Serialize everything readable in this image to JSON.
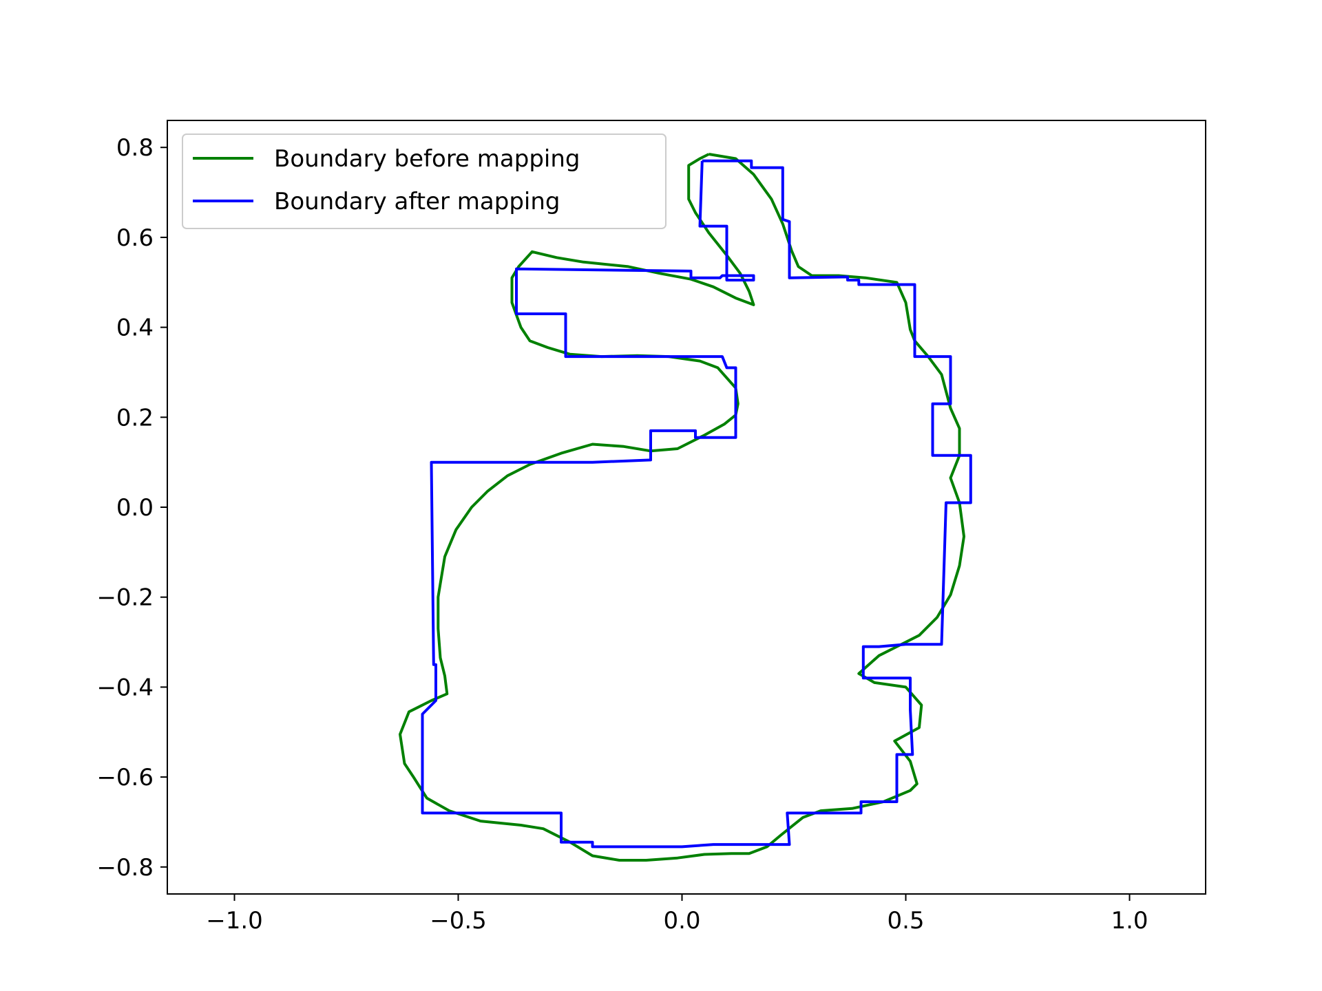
{
  "chart_data": {
    "type": "line",
    "title": "",
    "xlabel": "",
    "ylabel": "",
    "xlim": [
      -1.15,
      1.17
    ],
    "ylim": [
      -0.86,
      0.86
    ],
    "xticks": [
      -1.0,
      -0.5,
      0.0,
      0.5,
      1.0
    ],
    "xtick_labels": [
      "−1.0",
      "−0.5",
      "0.0",
      "0.5",
      "1.0"
    ],
    "yticks": [
      0.8,
      0.6,
      0.4,
      0.2,
      0.0,
      -0.2,
      -0.4,
      -0.6,
      -0.8
    ],
    "ytick_labels": [
      "0.8",
      "0.6",
      "0.4",
      "0.2",
      "0.0",
      "−0.2",
      "−0.4",
      "−0.6",
      "−0.8"
    ],
    "grid": false,
    "legend_position": "top-left",
    "series": [
      {
        "name": "Boundary before mapping",
        "color": "#008000",
        "points": [
          [
            0.06,
            0.785
          ],
          [
            0.12,
            0.775
          ],
          [
            0.16,
            0.74
          ],
          [
            0.2,
            0.685
          ],
          [
            0.225,
            0.63
          ],
          [
            0.245,
            0.57
          ],
          [
            0.26,
            0.535
          ],
          [
            0.29,
            0.515
          ],
          [
            0.35,
            0.515
          ],
          [
            0.41,
            0.51
          ],
          [
            0.48,
            0.5
          ],
          [
            0.5,
            0.455
          ],
          [
            0.51,
            0.395
          ],
          [
            0.52,
            0.37
          ],
          [
            0.55,
            0.335
          ],
          [
            0.58,
            0.295
          ],
          [
            0.6,
            0.22
          ],
          [
            0.62,
            0.175
          ],
          [
            0.62,
            0.115
          ],
          [
            0.6,
            0.065
          ],
          [
            0.62,
            0.01
          ],
          [
            0.63,
            -0.065
          ],
          [
            0.62,
            -0.13
          ],
          [
            0.6,
            -0.195
          ],
          [
            0.57,
            -0.245
          ],
          [
            0.53,
            -0.285
          ],
          [
            0.48,
            -0.31
          ],
          [
            0.44,
            -0.33
          ],
          [
            0.395,
            -0.37
          ],
          [
            0.43,
            -0.39
          ],
          [
            0.5,
            -0.4
          ],
          [
            0.535,
            -0.44
          ],
          [
            0.53,
            -0.49
          ],
          [
            0.475,
            -0.52
          ],
          [
            0.51,
            -0.565
          ],
          [
            0.525,
            -0.615
          ],
          [
            0.51,
            -0.63
          ],
          [
            0.45,
            -0.655
          ],
          [
            0.38,
            -0.67
          ],
          [
            0.31,
            -0.675
          ],
          [
            0.27,
            -0.69
          ],
          [
            0.22,
            -0.73
          ],
          [
            0.19,
            -0.755
          ],
          [
            0.15,
            -0.77
          ],
          [
            0.11,
            -0.77
          ],
          [
            0.05,
            -0.772
          ],
          [
            -0.01,
            -0.78
          ],
          [
            -0.08,
            -0.785
          ],
          [
            -0.14,
            -0.785
          ],
          [
            -0.2,
            -0.775
          ],
          [
            -0.25,
            -0.745
          ],
          [
            -0.31,
            -0.715
          ],
          [
            -0.36,
            -0.707
          ],
          [
            -0.45,
            -0.698
          ],
          [
            -0.52,
            -0.675
          ],
          [
            -0.57,
            -0.647
          ],
          [
            -0.6,
            -0.6
          ],
          [
            -0.62,
            -0.57
          ],
          [
            -0.63,
            -0.505
          ],
          [
            -0.61,
            -0.455
          ],
          [
            -0.59,
            -0.445
          ],
          [
            -0.56,
            -0.43
          ],
          [
            -0.525,
            -0.415
          ],
          [
            -0.53,
            -0.375
          ],
          [
            -0.54,
            -0.335
          ],
          [
            -0.545,
            -0.27
          ],
          [
            -0.545,
            -0.2
          ],
          [
            -0.54,
            -0.17
          ],
          [
            -0.53,
            -0.11
          ],
          [
            -0.505,
            -0.05
          ],
          [
            -0.47,
            0.0
          ],
          [
            -0.435,
            0.035
          ],
          [
            -0.39,
            0.07
          ],
          [
            -0.34,
            0.095
          ],
          [
            -0.27,
            0.12
          ],
          [
            -0.2,
            0.14
          ],
          [
            -0.13,
            0.135
          ],
          [
            -0.07,
            0.125
          ],
          [
            -0.01,
            0.13
          ],
          [
            0.05,
            0.16
          ],
          [
            0.095,
            0.185
          ],
          [
            0.12,
            0.205
          ],
          [
            0.125,
            0.23
          ],
          [
            0.12,
            0.265
          ],
          [
            0.08,
            0.31
          ],
          [
            0.04,
            0.325
          ],
          [
            -0.03,
            0.335
          ],
          [
            -0.1,
            0.337
          ],
          [
            -0.18,
            0.335
          ],
          [
            -0.25,
            0.34
          ],
          [
            -0.3,
            0.355
          ],
          [
            -0.34,
            0.37
          ],
          [
            -0.36,
            0.4
          ],
          [
            -0.38,
            0.455
          ],
          [
            -0.38,
            0.51
          ],
          [
            -0.365,
            0.535
          ],
          [
            -0.335,
            0.568
          ],
          [
            -0.28,
            0.555
          ],
          [
            -0.22,
            0.545
          ],
          [
            -0.12,
            0.535
          ],
          [
            -0.05,
            0.52
          ],
          [
            0.02,
            0.507
          ],
          [
            0.07,
            0.49
          ],
          [
            0.12,
            0.465
          ],
          [
            0.16,
            0.45
          ],
          [
            0.15,
            0.48
          ],
          [
            0.13,
            0.52
          ],
          [
            0.1,
            0.56
          ],
          [
            0.06,
            0.61
          ],
          [
            0.03,
            0.655
          ],
          [
            0.015,
            0.685
          ],
          [
            0.015,
            0.76
          ],
          [
            0.04,
            0.775
          ],
          [
            0.06,
            0.785
          ]
        ]
      },
      {
        "name": "Boundary after mapping",
        "color": "#0000ff",
        "points": [
          [
            0.045,
            0.77
          ],
          [
            0.155,
            0.77
          ],
          [
            0.155,
            0.755
          ],
          [
            0.225,
            0.755
          ],
          [
            0.225,
            0.64
          ],
          [
            0.24,
            0.635
          ],
          [
            0.24,
            0.51
          ],
          [
            0.37,
            0.512
          ],
          [
            0.37,
            0.505
          ],
          [
            0.395,
            0.505
          ],
          [
            0.395,
            0.495
          ],
          [
            0.52,
            0.495
          ],
          [
            0.52,
            0.335
          ],
          [
            0.6,
            0.335
          ],
          [
            0.6,
            0.23
          ],
          [
            0.56,
            0.23
          ],
          [
            0.56,
            0.115
          ],
          [
            0.645,
            0.115
          ],
          [
            0.645,
            0.01
          ],
          [
            0.59,
            0.01
          ],
          [
            0.58,
            -0.305
          ],
          [
            0.5,
            -0.305
          ],
          [
            0.44,
            -0.31
          ],
          [
            0.405,
            -0.31
          ],
          [
            0.405,
            -0.38
          ],
          [
            0.51,
            -0.38
          ],
          [
            0.51,
            -0.45
          ],
          [
            0.515,
            -0.55
          ],
          [
            0.48,
            -0.55
          ],
          [
            0.48,
            -0.655
          ],
          [
            0.4,
            -0.655
          ],
          [
            0.4,
            -0.68
          ],
          [
            0.235,
            -0.68
          ],
          [
            0.24,
            -0.75
          ],
          [
            0.07,
            -0.75
          ],
          [
            0.0,
            -0.755
          ],
          [
            -0.2,
            -0.755
          ],
          [
            -0.2,
            -0.745
          ],
          [
            -0.27,
            -0.745
          ],
          [
            -0.27,
            -0.68
          ],
          [
            -0.58,
            -0.68
          ],
          [
            -0.58,
            -0.46
          ],
          [
            -0.55,
            -0.43
          ],
          [
            -0.55,
            -0.35
          ],
          [
            -0.555,
            -0.35
          ],
          [
            -0.56,
            0.1
          ],
          [
            -0.2,
            0.1
          ],
          [
            -0.07,
            0.105
          ],
          [
            -0.07,
            0.17
          ],
          [
            0.03,
            0.17
          ],
          [
            0.03,
            0.155
          ],
          [
            0.12,
            0.155
          ],
          [
            0.12,
            0.31
          ],
          [
            0.1,
            0.31
          ],
          [
            0.09,
            0.335
          ],
          [
            -0.07,
            0.335
          ],
          [
            -0.26,
            0.335
          ],
          [
            -0.26,
            0.43
          ],
          [
            -0.37,
            0.43
          ],
          [
            -0.37,
            0.53
          ],
          [
            0.02,
            0.525
          ],
          [
            0.02,
            0.51
          ],
          [
            0.085,
            0.51
          ],
          [
            0.09,
            0.515
          ],
          [
            0.16,
            0.515
          ],
          [
            0.16,
            0.505
          ],
          [
            0.1,
            0.505
          ],
          [
            0.1,
            0.625
          ],
          [
            0.04,
            0.625
          ],
          [
            0.045,
            0.77
          ]
        ]
      }
    ]
  }
}
